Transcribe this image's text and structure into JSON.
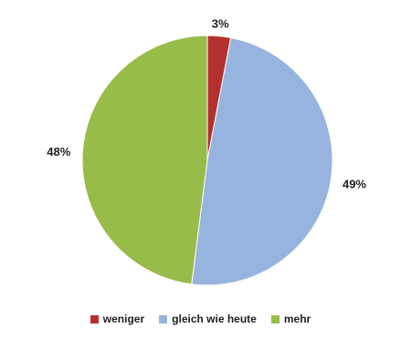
{
  "chart_data": {
    "type": "pie",
    "categories": [
      "weniger",
      "gleich wie heute",
      "mehr"
    ],
    "values": [
      3,
      49,
      48
    ],
    "labels": [
      "3%",
      "49%",
      "48%"
    ],
    "colors": [
      "#b4302e",
      "#97b4de",
      "#98bc4a"
    ],
    "start_angle": "top, clockwise",
    "legend_position": "bottom",
    "title": ""
  }
}
